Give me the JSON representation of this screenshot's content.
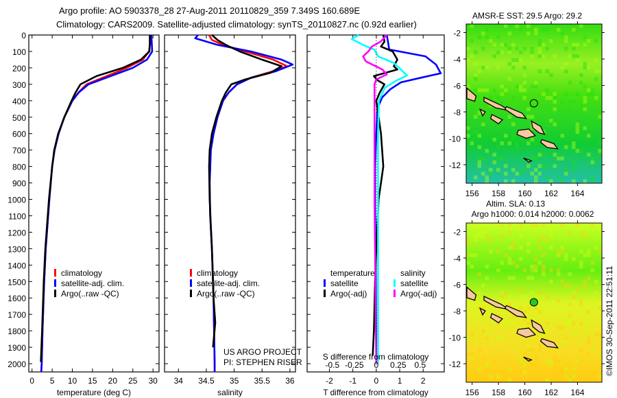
{
  "title": {
    "line1": "Argo profile: AO 5903378_28 27-Aug-2011 20110829_359 7.349S 160.689E",
    "line2": "Climatology: CARS2009. Satellite-adjusted climatology: synTS_20110827.nc (0.92d earlier)"
  },
  "colors": {
    "climatology": "#ff0000",
    "satellite": "#0000ff",
    "argo": "#000000",
    "s_satellite": "#00ffff",
    "s_argo": "#ff00ff"
  },
  "chart_data": [
    {
      "type": "line",
      "id": "temperature",
      "xlabel": "temperature (deg C)",
      "ylabel": "",
      "xlim": [
        -0.8,
        31.5
      ],
      "ylim": [
        2050,
        0
      ],
      "xticks": [
        "0",
        "5",
        "10",
        "15",
        "20",
        "25",
        "30"
      ],
      "yticks": [
        "0",
        "100",
        "200",
        "300",
        "400",
        "500",
        "600",
        "700",
        "800",
        "900",
        "1000",
        "1100",
        "1200",
        "1300",
        "1400",
        "1500",
        "1600",
        "1700",
        "1800",
        "1900",
        "2000"
      ],
      "legend": [
        "climatology",
        "satellite-adj. clim.",
        "Argo(..raw -QC)"
      ],
      "legend_placement": "lower-center",
      "series": [
        {
          "name": "climatology",
          "color": "#ff0000",
          "depth": [
            0,
            50,
            100,
            150,
            200,
            250,
            300,
            350,
            400,
            500,
            600,
            700,
            800,
            1000,
            1300,
            1500,
            1800,
            2000,
            2050
          ],
          "values": [
            29.4,
            29.3,
            29.0,
            27.5,
            23.5,
            18.5,
            13.5,
            11.5,
            10.0,
            8.0,
            6.6,
            5.6,
            5.0,
            4.3,
            3.4,
            3.0,
            2.6,
            2.4,
            2.3
          ]
        },
        {
          "name": "satellite-adj. clim.",
          "color": "#0000ff",
          "depth": [
            0,
            50,
            100,
            150,
            200,
            250,
            300,
            350,
            400,
            500,
            600,
            700,
            800,
            1000,
            1300,
            1500,
            1800,
            2000,
            2050
          ],
          "values": [
            29.6,
            29.7,
            29.8,
            28.5,
            25.0,
            19.5,
            14.0,
            11.6,
            10.0,
            8.0,
            6.6,
            5.6,
            5.0,
            4.3,
            3.4,
            3.0,
            2.6,
            2.4,
            2.3
          ]
        },
        {
          "name": "Argo(..raw -QC)",
          "color": "#000000",
          "depth": [
            0,
            50,
            100,
            150,
            200,
            250,
            300,
            350,
            400,
            500,
            600,
            700,
            800,
            1000,
            1300,
            1500,
            1800,
            1990
          ],
          "values": [
            29.2,
            29.2,
            29.1,
            27.0,
            22.5,
            16.0,
            12.0,
            10.8,
            9.8,
            8.0,
            6.5,
            5.5,
            5.0,
            4.2,
            3.3,
            2.9,
            2.5,
            2.2
          ]
        }
      ]
    },
    {
      "type": "line",
      "id": "salinity",
      "xlabel": "salinity",
      "xlim": [
        33.75,
        36.1
      ],
      "ylim": [
        2050,
        0
      ],
      "xticks": [
        "34",
        "34.5",
        "35",
        "35.5",
        "36"
      ],
      "legend": [
        "climatology",
        "satellite-adj. clim.",
        "Argo(..raw -QC)"
      ],
      "legend_placement": "lower-center",
      "annotation": [
        "US ARGO PROJECT",
        "PI: STEPHEN RISER"
      ],
      "series": [
        {
          "name": "climatology",
          "color": "#ff0000",
          "depth": [
            0,
            30,
            60,
            100,
            150,
            190,
            220,
            260,
            300,
            350,
            400,
            500,
            600,
            700,
            900,
            1100,
            1300,
            1600,
            2000,
            2050
          ],
          "values": [
            34.55,
            34.6,
            34.8,
            35.2,
            35.7,
            35.95,
            35.7,
            35.3,
            35.05,
            34.9,
            34.8,
            34.7,
            34.63,
            34.58,
            34.56,
            34.57,
            34.6,
            34.63,
            34.65,
            34.65
          ]
        },
        {
          "name": "satellite-adj. clim.",
          "color": "#0000ff",
          "depth": [
            0,
            20,
            60,
            100,
            150,
            180,
            220,
            260,
            300,
            350,
            400,
            500,
            600,
            700,
            900,
            1100,
            1300,
            1600,
            2000,
            2050
          ],
          "values": [
            34.35,
            34.3,
            34.7,
            35.3,
            35.85,
            36.05,
            35.75,
            35.3,
            35.05,
            34.9,
            34.8,
            34.7,
            34.63,
            34.58,
            34.56,
            34.57,
            34.6,
            34.63,
            34.65,
            34.65
          ]
        },
        {
          "name": "Argo(..raw -QC)",
          "color": "#000000",
          "depth": [
            0,
            30,
            60,
            100,
            150,
            190,
            230,
            270,
            300,
            350,
            400,
            500,
            600,
            700,
            800,
            1000,
            1300,
            1600,
            1750,
            1900
          ],
          "values": [
            34.6,
            34.7,
            34.85,
            35.1,
            35.5,
            35.85,
            35.65,
            35.2,
            34.95,
            34.85,
            34.78,
            34.68,
            34.6,
            34.56,
            34.55,
            34.56,
            34.6,
            34.63,
            34.66,
            34.62
          ]
        }
      ]
    },
    {
      "type": "line",
      "id": "difference",
      "xlabel": "T difference from climatology",
      "x2label": "S difference from climatology",
      "xlim": [
        -2.95,
        2.9
      ],
      "ylim": [
        2050,
        0
      ],
      "xticks": [
        "-2",
        "-1",
        "0",
        "1",
        "2"
      ],
      "x2ticks": [
        "-0.5",
        "-0.25",
        "0",
        "0.25",
        "0.5"
      ],
      "legend_headers": [
        "temperature",
        "salinity"
      ],
      "legend": [
        "satellite",
        "Argo(-adj)",
        "satellite",
        "Argo(-adj)"
      ],
      "series": [
        {
          "name": "T satellite",
          "var": "T",
          "color": "#0000ff",
          "depth": [
            0,
            40,
            88,
            130,
            180,
            233,
            260,
            288,
            330,
            380,
            446,
            600,
            800,
            1000,
            1500,
            2000
          ],
          "values": [
            0.45,
            0.5,
            0.55,
            2.1,
            2.55,
            2.75,
            1.9,
            1.05,
            0.6,
            0.25,
            0.05,
            0.0,
            -0.05,
            -0.05,
            -0.02,
            0.0
          ]
        },
        {
          "name": "T Argo(-adj)",
          "var": "T",
          "color": "#000000",
          "depth": [
            0,
            40,
            70,
            100,
            150,
            190,
            210,
            250,
            275,
            300,
            350,
            400,
            500,
            600,
            800,
            1000,
            1300,
            1500,
            1800,
            1950
          ],
          "values": [
            0.3,
            0.35,
            0.2,
            0.7,
            0.9,
            0.75,
            0.9,
            -0.1,
            0.05,
            0.35,
            0.15,
            0.0,
            0.1,
            0.2,
            0.3,
            0.1,
            0.0,
            -0.05,
            -0.1,
            -0.15
          ]
        },
        {
          "name": "S satellite",
          "var": "S",
          "color": "#00ffff",
          "depth": [
            0,
            25,
            60,
            90,
            130,
            170,
            210,
            246,
            280,
            320,
            400,
            600,
            1000,
            1500,
            2000
          ],
          "values": [
            -0.2,
            -0.28,
            -0.15,
            -0.02,
            0.02,
            0.2,
            0.28,
            0.35,
            0.22,
            0.1,
            0.03,
            0.02,
            0.02,
            0.02,
            0.02
          ]
        },
        {
          "name": "S Argo(-adj)",
          "var": "S",
          "color": "#ff00ff",
          "depth": [
            0,
            40,
            70,
            100,
            130,
            160,
            210,
            240,
            270,
            300,
            400,
            600,
            1000,
            1500,
            2000
          ],
          "values": [
            0.12,
            0.05,
            -0.05,
            -0.09,
            -0.15,
            -0.12,
            0.07,
            0.12,
            0.0,
            -0.02,
            -0.02,
            -0.02,
            -0.02,
            -0.01,
            0.0
          ]
        }
      ]
    },
    {
      "type": "heatmap",
      "id": "sst_map",
      "title": "AMSR-E SST: 29.5 Argo: 29.2",
      "xticks": [
        "156",
        "158",
        "160",
        "162",
        "164"
      ],
      "yticks": [
        "-2",
        "-4",
        "-6",
        "-8",
        "-10",
        "-12"
      ],
      "xlim": [
        155.55,
        165.85
      ],
      "ylim": [
        -13.4,
        -1.35
      ],
      "marker": {
        "lon": 160.689,
        "lat": -7.349
      }
    },
    {
      "type": "heatmap",
      "id": "sla_map",
      "title1": "Altim. SLA: 0.13",
      "title2": "Argo h1000: 0.014 h2000: 0.0062",
      "xticks": [
        "156",
        "158",
        "160",
        "162",
        "164"
      ],
      "yticks": [
        "-2",
        "-4",
        "-6",
        "-8",
        "-10",
        "-12"
      ],
      "xlim": [
        155.55,
        165.85
      ],
      "ylim": [
        -13.4,
        -1.35
      ],
      "marker": {
        "lon": 160.689,
        "lat": -7.349
      }
    }
  ],
  "credit": "©IMOS 30-Sep-2011 22:51:11"
}
